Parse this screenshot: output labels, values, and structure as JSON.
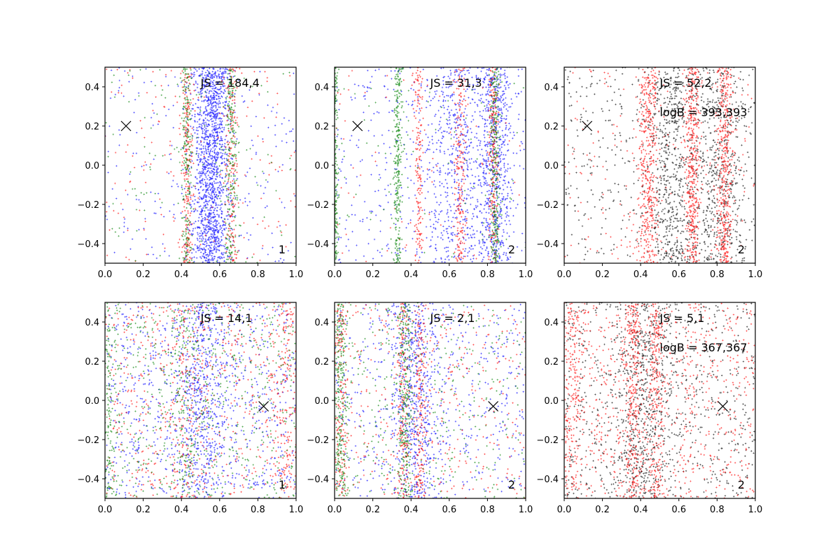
{
  "figure": {
    "title": ""
  },
  "chart_data": [
    {
      "type": "scatter",
      "panel": "top-left",
      "xlim": [
        0.0,
        1.0
      ],
      "ylim": [
        -0.5,
        0.5
      ],
      "xticks": [
        "0.0",
        "0.2",
        "0.4",
        "0.6",
        "0.8",
        "1.0"
      ],
      "yticks": [
        "0.4",
        "0.2",
        "0.0",
        "−0.2",
        "−0.4"
      ],
      "annotations": [
        "JS = 184,4"
      ],
      "corner_label": "1",
      "marker_x": {
        "x": 0.11,
        "y": 0.2
      },
      "series": [
        {
          "name": "blue",
          "color": "#0000ff",
          "count": 1700,
          "background": 0.12,
          "bands": [
            {
              "center": 0.56,
              "width": 0.05
            }
          ]
        },
        {
          "name": "red",
          "color": "#ff0000",
          "count": 550,
          "background": 0.3,
          "bands": [
            {
              "center": 0.43,
              "width": 0.014
            },
            {
              "center": 0.66,
              "width": 0.016
            }
          ]
        },
        {
          "name": "green",
          "color": "#008000",
          "count": 550,
          "background": 0.2,
          "bands": [
            {
              "center": 0.43,
              "width": 0.014
            },
            {
              "center": 0.66,
              "width": 0.016
            }
          ]
        }
      ]
    },
    {
      "type": "scatter",
      "panel": "top-middle",
      "xlim": [
        0.0,
        1.0
      ],
      "ylim": [
        -0.5,
        0.5
      ],
      "xticks": [
        "0.0",
        "0.2",
        "0.4",
        "0.6",
        "0.8",
        "1.0"
      ],
      "yticks": [
        "0.4",
        "0.2",
        "0.0",
        "−0.2",
        "−0.4"
      ],
      "annotations": [
        "JS = 31,3"
      ],
      "corner_label": "2",
      "marker_x": {
        "x": 0.12,
        "y": 0.2
      },
      "series": [
        {
          "name": "blue",
          "color": "#0000ff",
          "count": 1500,
          "background": 0.25,
          "bands": [
            {
              "center": 0.65,
              "width": 0.1
            },
            {
              "center": 0.84,
              "width": 0.05
            }
          ]
        },
        {
          "name": "red",
          "color": "#ff0000",
          "count": 650,
          "background": 0.12,
          "bands": [
            {
              "center": 0.44,
              "width": 0.012
            },
            {
              "center": 0.66,
              "width": 0.014
            },
            {
              "center": 0.83,
              "width": 0.012
            }
          ]
        },
        {
          "name": "green",
          "color": "#008000",
          "count": 950,
          "background": 0.1,
          "bands": [
            {
              "center": 0.84,
              "width": 0.013
            },
            {
              "center": 0.33,
              "width": 0.012
            },
            {
              "center": 0.0,
              "width": 0.008
            }
          ]
        }
      ]
    },
    {
      "type": "scatter",
      "panel": "top-right",
      "xlim": [
        0.0,
        1.0
      ],
      "ylim": [
        -0.5,
        0.5
      ],
      "xticks": [
        "0.0",
        "0.2",
        "0.4",
        "0.6",
        "0.8",
        "1.0"
      ],
      "yticks": [
        "0.4",
        "0.2",
        "0.0",
        "−0.2",
        "−0.4"
      ],
      "annotations": [
        "JS = 52,2",
        "logB = 393,393"
      ],
      "corner_label": "2",
      "marker_x": {
        "x": 0.12,
        "y": 0.2
      },
      "series": [
        {
          "name": "black",
          "color": "#000000",
          "count": 1500,
          "background": 0.3,
          "bands": [
            {
              "center": 0.56,
              "width": 0.06
            },
            {
              "center": 0.8,
              "width": 0.08
            }
          ]
        },
        {
          "name": "red",
          "color": "#ff0000",
          "count": 1500,
          "background": 0.15,
          "bands": [
            {
              "center": 0.44,
              "width": 0.025
            },
            {
              "center": 0.67,
              "width": 0.02
            },
            {
              "center": 0.84,
              "width": 0.02
            }
          ]
        }
      ]
    },
    {
      "type": "scatter",
      "panel": "bottom-left",
      "xlim": [
        0.0,
        1.0
      ],
      "ylim": [
        -0.5,
        0.5
      ],
      "xticks": [
        "0.0",
        "0.2",
        "0.4",
        "0.6",
        "0.8",
        "1.0"
      ],
      "yticks": [
        "0.4",
        "0.2",
        "0.0",
        "−0.2",
        "−0.4"
      ],
      "annotations": [
        "JS = 14,1"
      ],
      "corner_label": "1",
      "marker_x": {
        "x": 0.83,
        "y": -0.03
      },
      "series": [
        {
          "name": "blue",
          "color": "#0000ff",
          "count": 1300,
          "background": 0.6,
          "bands": [
            {
              "center": 0.5,
              "width": 0.07
            }
          ]
        },
        {
          "name": "red",
          "color": "#ff0000",
          "count": 900,
          "background": 0.65,
          "bands": [
            {
              "center": 0.42,
              "width": 0.05
            },
            {
              "center": 0.95,
              "width": 0.03
            }
          ]
        },
        {
          "name": "green",
          "color": "#008000",
          "count": 900,
          "background": 0.65,
          "bands": [
            {
              "center": 0.42,
              "width": 0.05
            },
            {
              "center": 0.02,
              "width": 0.02
            }
          ]
        }
      ]
    },
    {
      "type": "scatter",
      "panel": "bottom-middle",
      "xlim": [
        0.0,
        1.0
      ],
      "ylim": [
        -0.5,
        0.5
      ],
      "xticks": [
        "0.0",
        "0.2",
        "0.4",
        "0.6",
        "0.8",
        "1.0"
      ],
      "yticks": [
        "0.4",
        "0.2",
        "0.0",
        "−0.2",
        "−0.4"
      ],
      "annotations": [
        "JS = 2,1"
      ],
      "corner_label": "2",
      "marker_x": {
        "x": 0.83,
        "y": -0.03
      },
      "series": [
        {
          "name": "blue",
          "color": "#0000ff",
          "count": 1100,
          "background": 0.5,
          "bands": [
            {
              "center": 0.42,
              "width": 0.06
            }
          ]
        },
        {
          "name": "red",
          "color": "#ff0000",
          "count": 900,
          "background": 0.45,
          "bands": [
            {
              "center": 0.36,
              "width": 0.015
            },
            {
              "center": 0.45,
              "width": 0.015
            },
            {
              "center": 0.03,
              "width": 0.02
            }
          ]
        },
        {
          "name": "green",
          "color": "#008000",
          "count": 900,
          "background": 0.4,
          "bands": [
            {
              "center": 0.03,
              "width": 0.02
            },
            {
              "center": 0.37,
              "width": 0.02
            }
          ]
        }
      ]
    },
    {
      "type": "scatter",
      "panel": "bottom-right",
      "xlim": [
        0.0,
        1.0
      ],
      "ylim": [
        -0.5,
        0.5
      ],
      "xticks": [
        "0.0",
        "0.2",
        "0.4",
        "0.6",
        "0.8",
        "1.0"
      ],
      "yticks": [
        "0.4",
        "0.2",
        "0.0",
        "−0.2",
        "−0.4"
      ],
      "annotations": [
        "JS = 5,1",
        "logB = 367,367"
      ],
      "corner_label": "2",
      "marker_x": {
        "x": 0.83,
        "y": -0.03
      },
      "series": [
        {
          "name": "black",
          "color": "#000000",
          "count": 1300,
          "background": 0.6,
          "bands": [
            {
              "center": 0.42,
              "width": 0.08
            }
          ]
        },
        {
          "name": "red",
          "color": "#ff0000",
          "count": 1500,
          "background": 0.5,
          "bands": [
            {
              "center": 0.04,
              "width": 0.03
            },
            {
              "center": 0.36,
              "width": 0.02
            },
            {
              "center": 0.48,
              "width": 0.02
            }
          ]
        }
      ]
    }
  ]
}
